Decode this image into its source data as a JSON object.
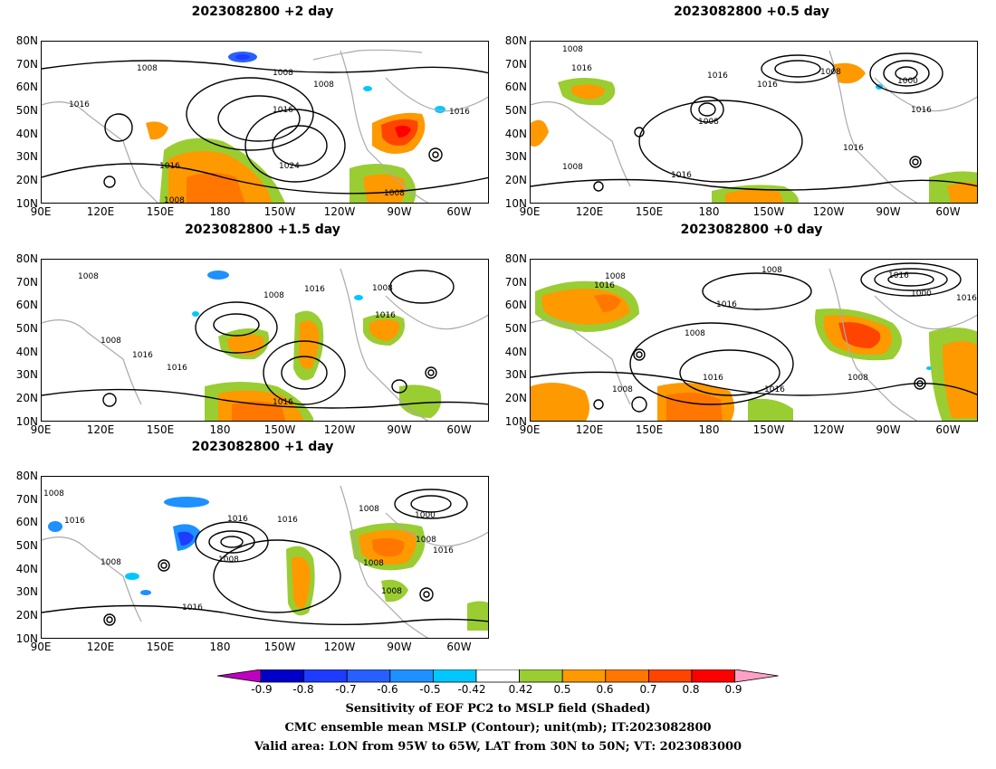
{
  "panels": [
    {
      "title": "2023082800 +2 day",
      "contour_labels": [
        "1008",
        "1008",
        "1008",
        "1016",
        "1016",
        "1016",
        "1024",
        "1008",
        "1008",
        "1016"
      ]
    },
    {
      "title": "2023082800 +0.5 day",
      "contour_labels": [
        "1008",
        "1016",
        "1016",
        "1016",
        "1008",
        "1000",
        "1008",
        "1016",
        "1016",
        "1016",
        "1008"
      ]
    },
    {
      "title": "2023082800 +1.5 day",
      "contour_labels": [
        "1008",
        "1008",
        "1016",
        "1008",
        "1016",
        "1008",
        "1016",
        "1016",
        "1016"
      ]
    },
    {
      "title": "2023082800 +0 day",
      "contour_labels": [
        "1008",
        "1008",
        "1016",
        "1016",
        "1016",
        "1008",
        "1000",
        "1016",
        "1008",
        "1016",
        "1016",
        "1008"
      ]
    },
    {
      "title": "2023082800 +1 day",
      "contour_labels": [
        "1008",
        "1016",
        "1016",
        "1016",
        "1008",
        "1008",
        "1008",
        "1008",
        "1016",
        "1000",
        "1008",
        "1008",
        "1016"
      ]
    }
  ],
  "lat_labels": [
    "80N",
    "70N",
    "60N",
    "50N",
    "40N",
    "30N",
    "20N",
    "10N"
  ],
  "lon_labels": [
    "90E",
    "120E",
    "150E",
    "180",
    "150W",
    "120W",
    "90W",
    "60W"
  ],
  "colorbar": {
    "ticks": [
      "-0.9",
      "-0.8",
      "-0.7",
      "-0.6",
      "-0.5",
      "-0.42",
      "0.42",
      "0.5",
      "0.6",
      "0.7",
      "0.8",
      "0.9"
    ],
    "colors": [
      "#c000c0",
      "#0000c8",
      "#1e3cff",
      "#2860ff",
      "#1e90ff",
      "#00c8ff",
      "#ffffff",
      "#9acd32",
      "#ff9900",
      "#ff7700",
      "#ff4400",
      "#ff0000",
      "#ffa0c8"
    ]
  },
  "captions": [
    "Sensitivity of EOF PC2 to MSLP field (Shaded)",
    "CMC ensemble mean MSLP (Contour); unit(mb); IT:2023082800",
    "Valid area: LON from 95W to 65W, LAT from 30N to 50N; VT: 2023083000"
  ]
}
